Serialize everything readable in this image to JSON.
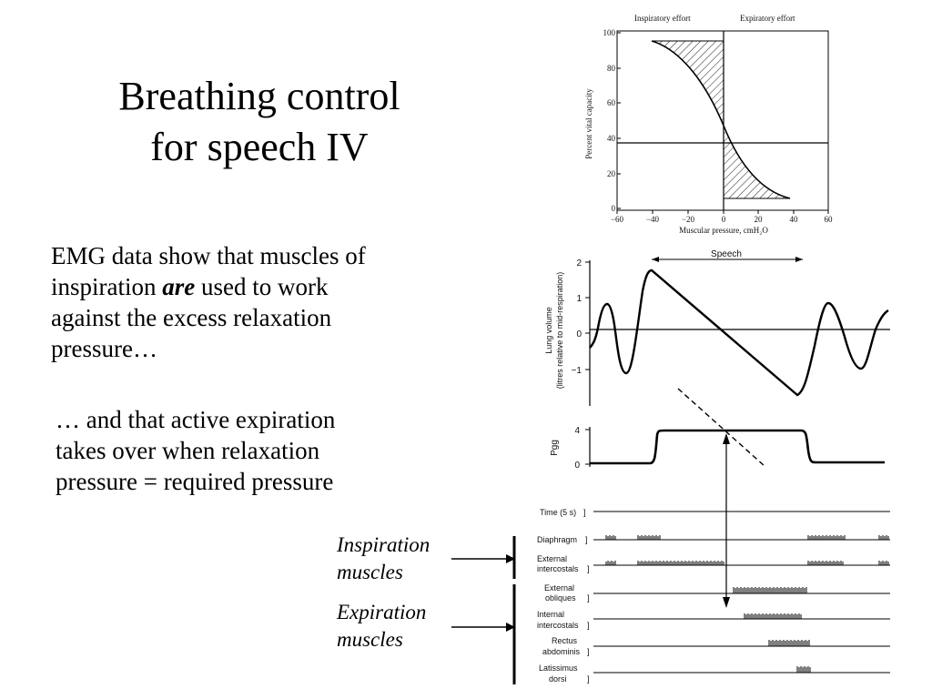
{
  "slide": {
    "title_line1": "Breathing control",
    "title_line2": "for speech IV",
    "para1_a": "EMG data show that muscles of",
    "para1_b": "inspiration ",
    "para1_em": "are",
    "para1_c": " used to work",
    "para1_d": "against the excess relaxation",
    "para1_e": "pressure…",
    "para2_a": "… and that active expiration",
    "para2_b": "takes over when relaxation",
    "para2_c": "pressure = required pressure",
    "inspiration_l1": "Inspiration",
    "inspiration_l2": "muscles",
    "expiration_l1": "Expiration",
    "expiration_l2": "muscles"
  },
  "top_graph": {
    "header_left": "Inspiratory effort",
    "header_right": "Expiratory effort",
    "ylabel": "Percent vital capacity",
    "xlabel": "Muscular pressure, cmH₂O",
    "y_ticks": [
      "100",
      "80",
      "60",
      "40",
      "20",
      "0"
    ],
    "x_ticks": [
      "−60",
      "−40",
      "−20",
      "0",
      "20",
      "40",
      "60"
    ]
  },
  "lower_graph": {
    "speech_label": "Speech",
    "ylabel_1": "Lung volume",
    "ylabel_2": "(litres relative to mid-respiration)",
    "volume_ticks": [
      "2",
      "1",
      "0",
      "−1"
    ],
    "pgg_label": "Pgg",
    "pgg_ticks": [
      "4",
      "0"
    ],
    "time_label": "Time (5 s)",
    "emg_channels": [
      {
        "l1": "Diaphragm",
        "l2": ""
      },
      {
        "l1": "External",
        "l2": "intercostals"
      },
      {
        "l1": "External",
        "l2": "obliques"
      },
      {
        "l1": "Internal",
        "l2": "intercostals"
      },
      {
        "l1": "Rectus",
        "l2": "abdominis"
      },
      {
        "l1": "Latissimus",
        "l2": "dorsi"
      }
    ]
  }
}
